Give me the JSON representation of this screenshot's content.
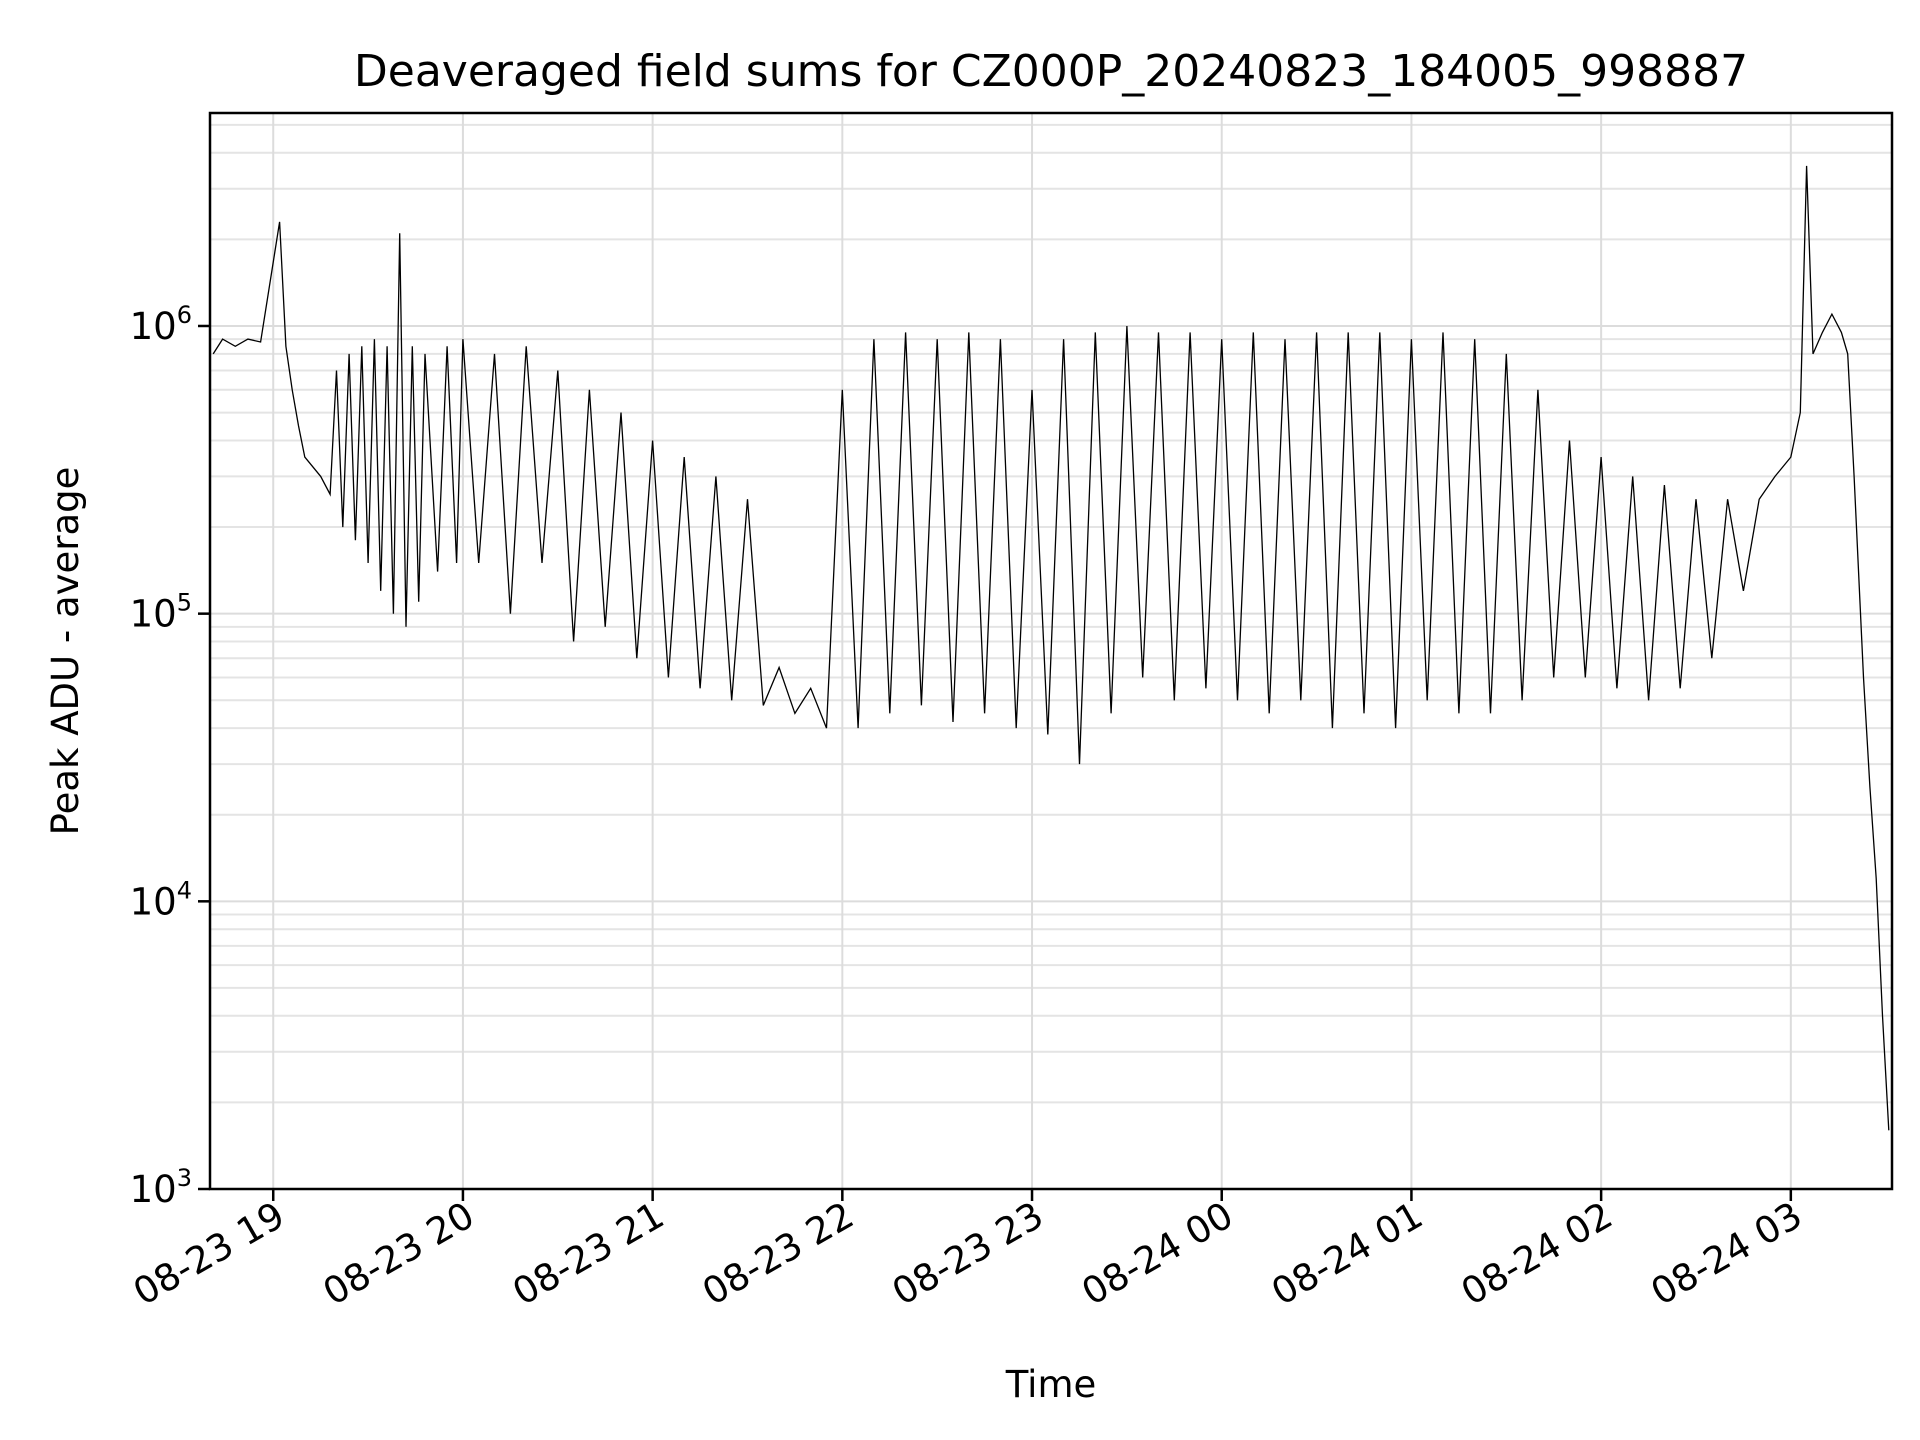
{
  "chart_data": {
    "type": "line",
    "title": "Deaveraged field sums for CZ000P_20240823_184005_998887",
    "xlabel": "Time",
    "ylabel": "Peak ADU - average",
    "yscale": "log",
    "grid": true,
    "legend": "none",
    "line_color": "#000000",
    "xlim": [
      "2024-08-23 18:40",
      "2024-08-24 03:32"
    ],
    "ylim": [
      1000,
      5500000
    ],
    "x_tick_labels": [
      "08-23 19",
      "08-23 20",
      "08-23 21",
      "08-23 22",
      "08-23 23",
      "08-24 00",
      "08-24 01",
      "08-24 02",
      "08-24 03"
    ],
    "x_tick_times": [
      "2024-08-23 19:00",
      "2024-08-23 20:00",
      "2024-08-23 21:00",
      "2024-08-23 22:00",
      "2024-08-23 23:00",
      "2024-08-24 00:00",
      "2024-08-24 01:00",
      "2024-08-24 02:00",
      "2024-08-24 03:00"
    ],
    "y_ticks": [
      {
        "value": 1000,
        "base": "10",
        "exp": "3"
      },
      {
        "value": 10000,
        "base": "10",
        "exp": "4"
      },
      {
        "value": 100000,
        "base": "10",
        "exp": "5"
      },
      {
        "value": 1000000,
        "base": "10",
        "exp": "6"
      }
    ],
    "series": [
      {
        "points": [
          [
            "2024-08-23 18:41",
            800000
          ],
          [
            "2024-08-23 18:44",
            900000
          ],
          [
            "2024-08-23 18:48",
            850000
          ],
          [
            "2024-08-23 18:52",
            900000
          ],
          [
            "2024-08-23 18:56",
            880000
          ],
          [
            "2024-08-23 19:02",
            2300000
          ],
          [
            "2024-08-23 19:04",
            850000
          ],
          [
            "2024-08-23 19:06",
            600000
          ],
          [
            "2024-08-23 19:08",
            450000
          ],
          [
            "2024-08-23 19:10",
            350000
          ],
          [
            "2024-08-23 19:15",
            300000
          ],
          [
            "2024-08-23 19:18",
            260000
          ],
          [
            "2024-08-23 19:20",
            700000
          ],
          [
            "2024-08-23 19:22",
            200000
          ],
          [
            "2024-08-23 19:24",
            800000
          ],
          [
            "2024-08-23 19:26",
            180000
          ],
          [
            "2024-08-23 19:28",
            850000
          ],
          [
            "2024-08-23 19:30",
            150000
          ],
          [
            "2024-08-23 19:32",
            900000
          ],
          [
            "2024-08-23 19:34",
            120000
          ],
          [
            "2024-08-23 19:36",
            850000
          ],
          [
            "2024-08-23 19:38",
            100000
          ],
          [
            "2024-08-23 19:40",
            2100000
          ],
          [
            "2024-08-23 19:42",
            90000
          ],
          [
            "2024-08-23 19:44",
            850000
          ],
          [
            "2024-08-23 19:46",
            110000
          ],
          [
            "2024-08-23 19:48",
            800000
          ],
          [
            "2024-08-23 19:52",
            140000
          ],
          [
            "2024-08-23 19:55",
            850000
          ],
          [
            "2024-08-23 19:58",
            150000
          ],
          [
            "2024-08-23 20:00",
            900000
          ],
          [
            "2024-08-23 20:05",
            150000
          ],
          [
            "2024-08-23 20:10",
            800000
          ],
          [
            "2024-08-23 20:15",
            100000
          ],
          [
            "2024-08-23 20:20",
            850000
          ],
          [
            "2024-08-23 20:25",
            150000
          ],
          [
            "2024-08-23 20:30",
            700000
          ],
          [
            "2024-08-23 20:35",
            80000
          ],
          [
            "2024-08-23 20:40",
            600000
          ],
          [
            "2024-08-23 20:45",
            90000
          ],
          [
            "2024-08-23 20:50",
            500000
          ],
          [
            "2024-08-23 20:55",
            70000
          ],
          [
            "2024-08-23 21:00",
            400000
          ],
          [
            "2024-08-23 21:05",
            60000
          ],
          [
            "2024-08-23 21:10",
            350000
          ],
          [
            "2024-08-23 21:15",
            55000
          ],
          [
            "2024-08-23 21:20",
            300000
          ],
          [
            "2024-08-23 21:25",
            50000
          ],
          [
            "2024-08-23 21:30",
            250000
          ],
          [
            "2024-08-23 21:35",
            48000
          ],
          [
            "2024-08-23 21:40",
            65000
          ],
          [
            "2024-08-23 21:45",
            45000
          ],
          [
            "2024-08-23 21:50",
            55000
          ],
          [
            "2024-08-23 21:55",
            40000
          ],
          [
            "2024-08-23 22:00",
            600000
          ],
          [
            "2024-08-23 22:05",
            40000
          ],
          [
            "2024-08-23 22:10",
            900000
          ],
          [
            "2024-08-23 22:15",
            45000
          ],
          [
            "2024-08-23 22:20",
            950000
          ],
          [
            "2024-08-23 22:25",
            48000
          ],
          [
            "2024-08-23 22:30",
            900000
          ],
          [
            "2024-08-23 22:35",
            42000
          ],
          [
            "2024-08-23 22:40",
            950000
          ],
          [
            "2024-08-23 22:45",
            45000
          ],
          [
            "2024-08-23 22:50",
            900000
          ],
          [
            "2024-08-23 22:55",
            40000
          ],
          [
            "2024-08-23 23:00",
            600000
          ],
          [
            "2024-08-23 23:05",
            38000
          ],
          [
            "2024-08-23 23:10",
            900000
          ],
          [
            "2024-08-23 23:15",
            30000
          ],
          [
            "2024-08-23 23:20",
            950000
          ],
          [
            "2024-08-23 23:25",
            45000
          ],
          [
            "2024-08-23 23:30",
            1000000
          ],
          [
            "2024-08-23 23:35",
            60000
          ],
          [
            "2024-08-23 23:40",
            950000
          ],
          [
            "2024-08-23 23:45",
            50000
          ],
          [
            "2024-08-23 23:50",
            950000
          ],
          [
            "2024-08-23 23:55",
            55000
          ],
          [
            "2024-08-24 00:00",
            900000
          ],
          [
            "2024-08-24 00:05",
            50000
          ],
          [
            "2024-08-24 00:10",
            950000
          ],
          [
            "2024-08-24 00:15",
            45000
          ],
          [
            "2024-08-24 00:20",
            900000
          ],
          [
            "2024-08-24 00:25",
            50000
          ],
          [
            "2024-08-24 00:30",
            950000
          ],
          [
            "2024-08-24 00:35",
            40000
          ],
          [
            "2024-08-24 00:40",
            950000
          ],
          [
            "2024-08-24 00:45",
            45000
          ],
          [
            "2024-08-24 00:50",
            950000
          ],
          [
            "2024-08-24 00:55",
            40000
          ],
          [
            "2024-08-24 01:00",
            900000
          ],
          [
            "2024-08-24 01:05",
            50000
          ],
          [
            "2024-08-24 01:10",
            950000
          ],
          [
            "2024-08-24 01:15",
            45000
          ],
          [
            "2024-08-24 01:20",
            900000
          ],
          [
            "2024-08-24 01:25",
            45000
          ],
          [
            "2024-08-24 01:30",
            800000
          ],
          [
            "2024-08-24 01:35",
            50000
          ],
          [
            "2024-08-24 01:40",
            600000
          ],
          [
            "2024-08-24 01:45",
            60000
          ],
          [
            "2024-08-24 01:50",
            400000
          ],
          [
            "2024-08-24 01:55",
            60000
          ],
          [
            "2024-08-24 02:00",
            350000
          ],
          [
            "2024-08-24 02:05",
            55000
          ],
          [
            "2024-08-24 02:10",
            300000
          ],
          [
            "2024-08-24 02:15",
            50000
          ],
          [
            "2024-08-24 02:20",
            280000
          ],
          [
            "2024-08-24 02:25",
            55000
          ],
          [
            "2024-08-24 02:30",
            250000
          ],
          [
            "2024-08-24 02:35",
            70000
          ],
          [
            "2024-08-24 02:40",
            250000
          ],
          [
            "2024-08-24 02:45",
            120000
          ],
          [
            "2024-08-24 02:50",
            250000
          ],
          [
            "2024-08-24 02:55",
            300000
          ],
          [
            "2024-08-24 03:00",
            350000
          ],
          [
            "2024-08-24 03:03",
            500000
          ],
          [
            "2024-08-24 03:05",
            3600000
          ],
          [
            "2024-08-24 03:07",
            800000
          ],
          [
            "2024-08-24 03:10",
            950000
          ],
          [
            "2024-08-24 03:13",
            1100000
          ],
          [
            "2024-08-24 03:16",
            950000
          ],
          [
            "2024-08-24 03:18",
            800000
          ],
          [
            "2024-08-24 03:20",
            300000
          ],
          [
            "2024-08-24 03:23",
            60000
          ],
          [
            "2024-08-24 03:25",
            25000
          ],
          [
            "2024-08-24 03:27",
            12000
          ],
          [
            "2024-08-24 03:29",
            4000
          ],
          [
            "2024-08-24 03:31",
            1600
          ]
        ]
      }
    ]
  }
}
